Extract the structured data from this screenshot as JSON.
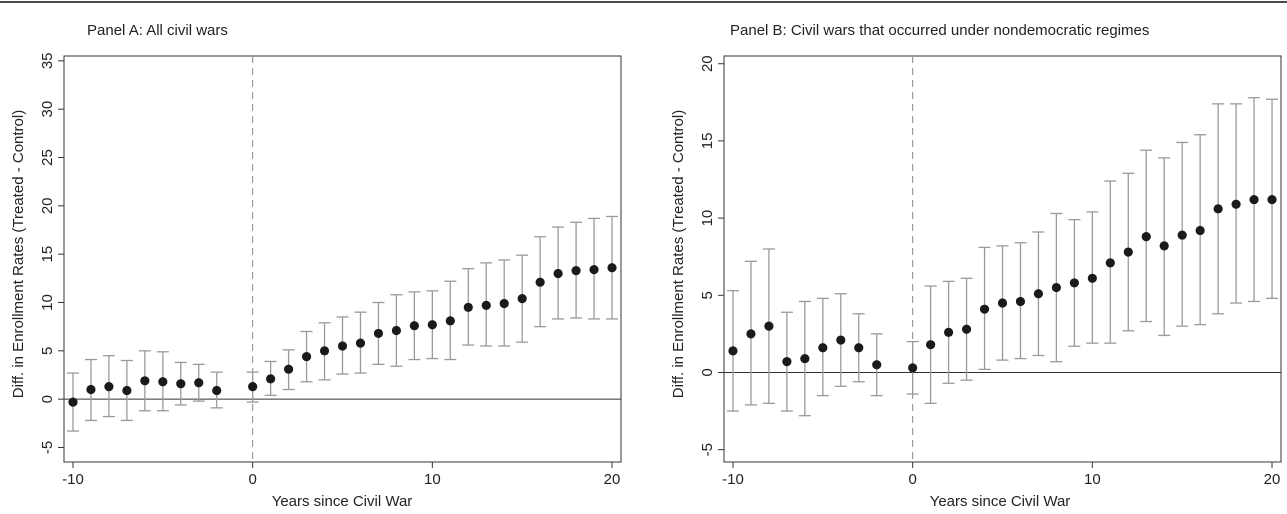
{
  "chart_data": [
    {
      "type": "scatter",
      "title": "Panel A: All civil wars",
      "xlabel": "Years since Civil War",
      "ylabel": "Diff. in Enrollment Rates (Treated - Control)",
      "xlim": [
        -10.5,
        20.5
      ],
      "ylim": [
        -6.5,
        35.5
      ],
      "xticks": [
        -10,
        0,
        10,
        20
      ],
      "xtick_labels": [
        "-10",
        "0",
        "10",
        "20"
      ],
      "yticks": [
        -5,
        0,
        5,
        10,
        15,
        20,
        25,
        30,
        35
      ],
      "ytick_labels": [
        "-5",
        "0",
        "5",
        "10",
        "15",
        "20",
        "25",
        "30",
        "35"
      ],
      "reference_lines": {
        "vertical_dashed_x": 0,
        "horizontal_y": 0
      },
      "grid": false,
      "legend": "none",
      "marker_color": "#1a1a1a",
      "errorbar_color": "#9a9a9a",
      "points": [
        {
          "x": -10,
          "y": -0.3,
          "lo": -3.3,
          "hi": 2.7
        },
        {
          "x": -9,
          "y": 1.0,
          "lo": -2.2,
          "hi": 4.1
        },
        {
          "x": -8,
          "y": 1.3,
          "lo": -1.8,
          "hi": 4.5
        },
        {
          "x": -7,
          "y": 0.9,
          "lo": -2.2,
          "hi": 4.0
        },
        {
          "x": -6,
          "y": 1.9,
          "lo": -1.2,
          "hi": 5.0
        },
        {
          "x": -5,
          "y": 1.8,
          "lo": -1.2,
          "hi": 4.9
        },
        {
          "x": -4,
          "y": 1.6,
          "lo": -0.6,
          "hi": 3.8
        },
        {
          "x": -3,
          "y": 1.7,
          "lo": -0.2,
          "hi": 3.6
        },
        {
          "x": -2,
          "y": 0.9,
          "lo": -0.9,
          "hi": 2.8
        },
        {
          "x": 0,
          "y": 1.3,
          "lo": -0.3,
          "hi": 2.8
        },
        {
          "x": 1,
          "y": 2.1,
          "lo": 0.4,
          "hi": 3.9
        },
        {
          "x": 2,
          "y": 3.1,
          "lo": 1.0,
          "hi": 5.1
        },
        {
          "x": 3,
          "y": 4.4,
          "lo": 1.8,
          "hi": 7.0
        },
        {
          "x": 4,
          "y": 5.0,
          "lo": 2.0,
          "hi": 7.9
        },
        {
          "x": 5,
          "y": 5.5,
          "lo": 2.6,
          "hi": 8.5
        },
        {
          "x": 6,
          "y": 5.8,
          "lo": 2.7,
          "hi": 9.0
        },
        {
          "x": 7,
          "y": 6.8,
          "lo": 3.6,
          "hi": 10.0
        },
        {
          "x": 8,
          "y": 7.1,
          "lo": 3.4,
          "hi": 10.8
        },
        {
          "x": 9,
          "y": 7.6,
          "lo": 4.1,
          "hi": 11.1
        },
        {
          "x": 10,
          "y": 7.7,
          "lo": 4.2,
          "hi": 11.2
        },
        {
          "x": 11,
          "y": 8.1,
          "lo": 4.1,
          "hi": 12.2
        },
        {
          "x": 12,
          "y": 9.5,
          "lo": 5.6,
          "hi": 13.5
        },
        {
          "x": 13,
          "y": 9.7,
          "lo": 5.5,
          "hi": 14.1
        },
        {
          "x": 14,
          "y": 9.9,
          "lo": 5.5,
          "hi": 14.4
        },
        {
          "x": 15,
          "y": 10.4,
          "lo": 5.9,
          "hi": 14.9
        },
        {
          "x": 16,
          "y": 12.1,
          "lo": 7.5,
          "hi": 16.8
        },
        {
          "x": 17,
          "y": 13.0,
          "lo": 8.3,
          "hi": 17.8
        },
        {
          "x": 18,
          "y": 13.3,
          "lo": 8.4,
          "hi": 18.3
        },
        {
          "x": 19,
          "y": 13.4,
          "lo": 8.3,
          "hi": 18.7
        },
        {
          "x": 20,
          "y": 13.6,
          "lo": 8.3,
          "hi": 18.9
        }
      ]
    },
    {
      "type": "scatter",
      "title": "Panel B: Civil wars that occurred under nondemocratic regimes",
      "xlabel": "Years since Civil War",
      "ylabel": "Diff. in Enrollment Rates (Treated - Control)",
      "xlim": [
        -10.5,
        20.5
      ],
      "ylim": [
        -5.8,
        20.5
      ],
      "xticks": [
        -10,
        0,
        10,
        20
      ],
      "xtick_labels": [
        "-10",
        "0",
        "10",
        "20"
      ],
      "yticks": [
        -5,
        0,
        5,
        10,
        15,
        20
      ],
      "ytick_labels": [
        "-5",
        "0",
        "5",
        "10",
        "15",
        "20"
      ],
      "reference_lines": {
        "vertical_dashed_x": 0,
        "horizontal_y": 0
      },
      "grid": false,
      "legend": "none",
      "marker_color": "#1a1a1a",
      "errorbar_color": "#9a9a9a",
      "points": [
        {
          "x": -10,
          "y": 1.4,
          "lo": -2.5,
          "hi": 5.3
        },
        {
          "x": -9,
          "y": 2.5,
          "lo": -2.1,
          "hi": 7.2
        },
        {
          "x": -8,
          "y": 3.0,
          "lo": -2.0,
          "hi": 8.0
        },
        {
          "x": -7,
          "y": 0.7,
          "lo": -2.5,
          "hi": 3.9
        },
        {
          "x": -6,
          "y": 0.9,
          "lo": -2.8,
          "hi": 4.6
        },
        {
          "x": -5,
          "y": 1.6,
          "lo": -1.5,
          "hi": 4.8
        },
        {
          "x": -4,
          "y": 2.1,
          "lo": -0.9,
          "hi": 5.1
        },
        {
          "x": -3,
          "y": 1.6,
          "lo": -0.6,
          "hi": 3.8
        },
        {
          "x": -2,
          "y": 0.5,
          "lo": -1.5,
          "hi": 2.5
        },
        {
          "x": 0,
          "y": 0.3,
          "lo": -1.4,
          "hi": 2.0
        },
        {
          "x": 1,
          "y": 1.8,
          "lo": -2.0,
          "hi": 5.6
        },
        {
          "x": 2,
          "y": 2.6,
          "lo": -0.7,
          "hi": 5.9
        },
        {
          "x": 3,
          "y": 2.8,
          "lo": -0.5,
          "hi": 6.1
        },
        {
          "x": 4,
          "y": 4.1,
          "lo": 0.2,
          "hi": 8.1
        },
        {
          "x": 5,
          "y": 4.5,
          "lo": 0.8,
          "hi": 8.2
        },
        {
          "x": 6,
          "y": 4.6,
          "lo": 0.9,
          "hi": 8.4
        },
        {
          "x": 7,
          "y": 5.1,
          "lo": 1.1,
          "hi": 9.1
        },
        {
          "x": 8,
          "y": 5.5,
          "lo": 0.7,
          "hi": 10.3
        },
        {
          "x": 9,
          "y": 5.8,
          "lo": 1.7,
          "hi": 9.9
        },
        {
          "x": 10,
          "y": 6.1,
          "lo": 1.9,
          "hi": 10.4
        },
        {
          "x": 11,
          "y": 7.1,
          "lo": 1.9,
          "hi": 12.4
        },
        {
          "x": 12,
          "y": 7.8,
          "lo": 2.7,
          "hi": 12.9
        },
        {
          "x": 13,
          "y": 8.8,
          "lo": 3.3,
          "hi": 14.4
        },
        {
          "x": 14,
          "y": 8.2,
          "lo": 2.4,
          "hi": 13.9
        },
        {
          "x": 15,
          "y": 8.9,
          "lo": 3.0,
          "hi": 14.9
        },
        {
          "x": 16,
          "y": 9.2,
          "lo": 3.1,
          "hi": 15.4
        },
        {
          "x": 17,
          "y": 10.6,
          "lo": 3.8,
          "hi": 17.4
        },
        {
          "x": 18,
          "y": 10.9,
          "lo": 4.5,
          "hi": 17.4
        },
        {
          "x": 19,
          "y": 11.2,
          "lo": 4.6,
          "hi": 17.8
        },
        {
          "x": 20,
          "y": 11.2,
          "lo": 4.8,
          "hi": 17.7
        }
      ]
    }
  ]
}
